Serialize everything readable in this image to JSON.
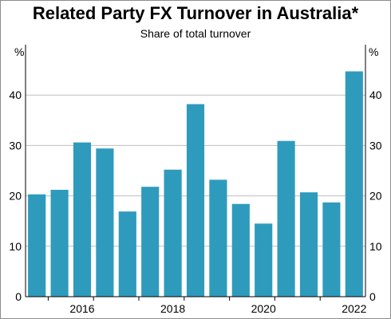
{
  "chart_data": {
    "type": "bar",
    "title": "Related Party FX Turnover in Australia*",
    "subtitle": "Share of total turnover",
    "ylabel_left": "%",
    "ylabel_right": "%",
    "ylim": [
      0,
      50
    ],
    "yticks": [
      0,
      10,
      20,
      30,
      40
    ],
    "x_tick_labels": [
      "2016",
      "2018",
      "2020",
      "2022"
    ],
    "grid": "horizontal",
    "bar_color": "#2e9bbd",
    "values": [
      20.3,
      21.2,
      30.6,
      29.4,
      16.9,
      21.8,
      25.2,
      38.2,
      23.2,
      18.4,
      14.5,
      30.9,
      20.7,
      18.7,
      44.7
    ]
  }
}
